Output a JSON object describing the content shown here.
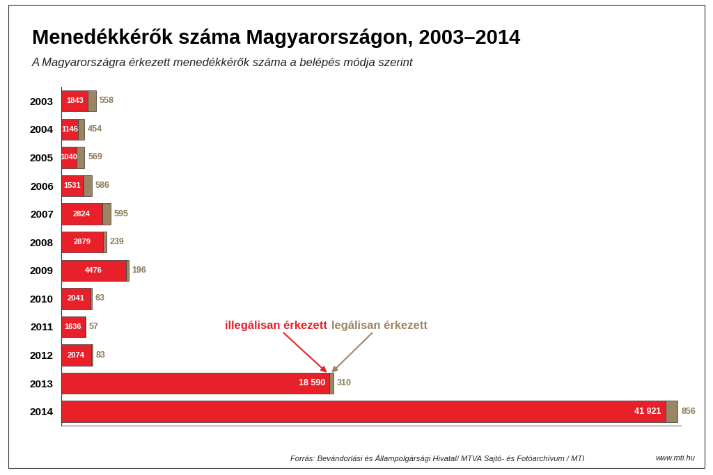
{
  "chart_data": {
    "type": "bar",
    "title": "Menedékkérők száma Magyarországon, 2003–2014",
    "subtitle": "A Magyarországra érkezett menedékkérők száma a belépés módja szerint",
    "source": "Forrás: Bevándorlási és Állampolgársági Hivatal/ MTVA Sajtó- és Fotóarchívum / MTI",
    "website": "www.mti.hu",
    "orientation": "horizontal",
    "stacked": true,
    "data_labels": true,
    "tick_labels": "y",
    "grid": false,
    "categories": [
      "2003",
      "2004",
      "2005",
      "2006",
      "2007",
      "2008",
      "2009",
      "2010",
      "2011",
      "2012",
      "2013",
      "2014"
    ],
    "xlim": [
      0,
      43000
    ],
    "series": [
      {
        "name": "illegálisan érkezett",
        "color": "#e8202a",
        "values": [
          1843,
          1146,
          1040,
          1531,
          2824,
          2879,
          4476,
          2041,
          1636,
          2074,
          18590,
          41921
        ],
        "value_labels": [
          "1843",
          "1146",
          "1040",
          "1531",
          "2824",
          "2879",
          "4476",
          "2041",
          "1636",
          "2074",
          "18 590",
          "41 921"
        ]
      },
      {
        "name": "legálisan érkezett",
        "color": "#9c8563",
        "values": [
          558,
          454,
          569,
          586,
          595,
          239,
          196,
          63,
          57,
          83,
          310,
          856
        ]
      }
    ]
  }
}
